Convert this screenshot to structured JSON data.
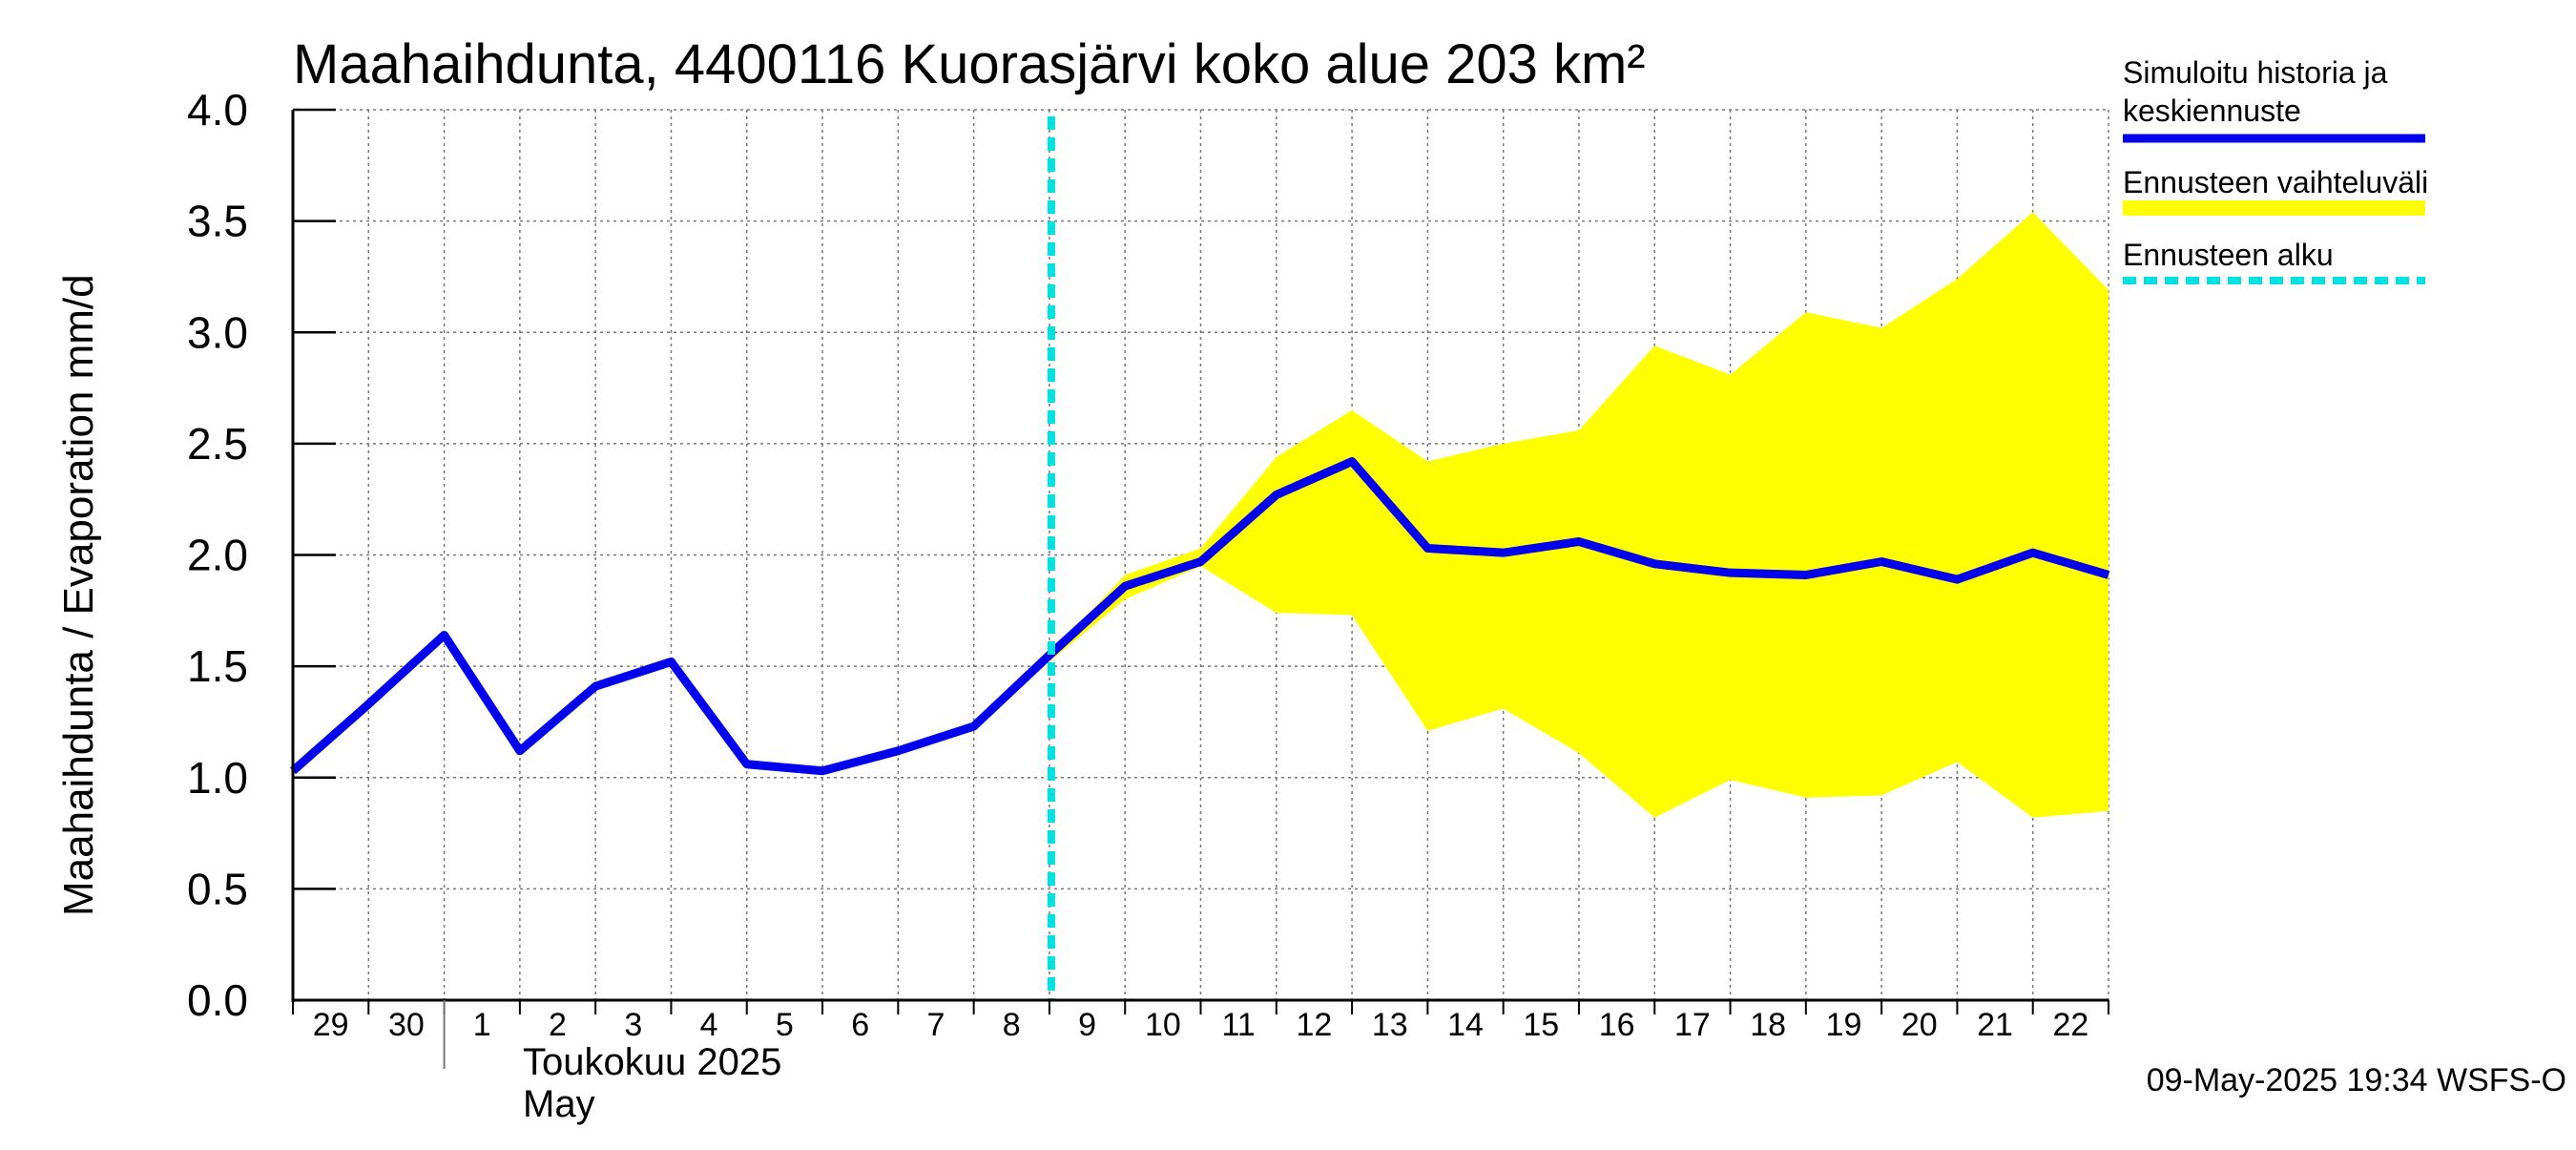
{
  "chart_data": {
    "type": "line",
    "title": "Maahaihdunta, 4400116 Kuorasjärvi koko alue 203 km²",
    "ylabel": "Maahaihdunta / Evaporation   mm/d",
    "ylim": [
      0,
      4.0
    ],
    "yticks": [
      "0.0",
      "0.5",
      "1.0",
      "1.5",
      "2.0",
      "2.5",
      "3.0",
      "3.5",
      "4.0"
    ],
    "ytick_values": [
      0,
      0.5,
      1.0,
      1.5,
      2.0,
      2.5,
      3.0,
      3.5,
      4.0
    ],
    "x_tick_labels": [
      "29",
      "30",
      "1",
      "2",
      "3",
      "4",
      "5",
      "6",
      "7",
      "8",
      "9",
      "10",
      "11",
      "12",
      "13",
      "14",
      "15",
      "16",
      "17",
      "18",
      "19",
      "20",
      "21",
      "22"
    ],
    "month_label_fi": "Toukokuu  2025",
    "month_label_en": "May",
    "grid": true,
    "x": [
      "2025-04-29",
      "2025-04-30",
      "2025-05-01",
      "2025-05-02",
      "2025-05-03",
      "2025-05-04",
      "2025-05-05",
      "2025-05-06",
      "2025-05-07",
      "2025-05-08",
      "2025-05-09",
      "2025-05-10",
      "2025-05-11",
      "2025-05-12",
      "2025-05-13",
      "2025-05-14",
      "2025-05-15",
      "2025-05-16",
      "2025-05-17",
      "2025-05-18",
      "2025-05-19",
      "2025-05-20",
      "2025-05-21",
      "2025-05-22",
      "2025-05-23"
    ],
    "series": [
      {
        "name": "Simuloitu historia ja keskiennuste",
        "color": "#0000ee",
        "values": [
          1.03,
          1.33,
          1.64,
          1.12,
          1.41,
          1.52,
          1.06,
          1.03,
          1.12,
          1.23,
          1.55,
          1.86,
          1.97,
          2.27,
          2.42,
          2.03,
          2.01,
          2.06,
          1.96,
          1.92,
          1.91,
          1.97,
          1.89,
          2.01,
          1.91
        ]
      }
    ],
    "band": {
      "name": "Ennusteen vaihteluväli",
      "color": "#ffff00",
      "start_index": 10,
      "upper": [
        1.55,
        1.91,
        2.03,
        2.44,
        2.65,
        2.42,
        2.5,
        2.56,
        2.94,
        2.81,
        3.09,
        3.02,
        3.24,
        3.54,
        3.19
      ],
      "lower": [
        1.52,
        1.8,
        1.95,
        1.74,
        1.73,
        1.21,
        1.31,
        1.11,
        0.82,
        0.99,
        0.91,
        0.92,
        1.07,
        0.82,
        0.85
      ]
    },
    "forecast_start": {
      "name": "Ennusteen alku",
      "color": "#00e0e0",
      "x": "2025-05-09"
    },
    "legend": {
      "placement": "right",
      "entries": [
        {
          "label_lines": [
            "Simuloitu historia ja",
            "keskiennuste"
          ],
          "style": "line",
          "color": "#0000ee"
        },
        {
          "label_lines": [
            "Ennusteen vaihteluväli"
          ],
          "style": "band",
          "color": "#ffff00"
        },
        {
          "label_lines": [
            "Ennusteen alku"
          ],
          "style": "dashed",
          "color": "#00e0e0"
        }
      ]
    },
    "timestamp": "09-May-2025 19:34 WSFS-O"
  }
}
